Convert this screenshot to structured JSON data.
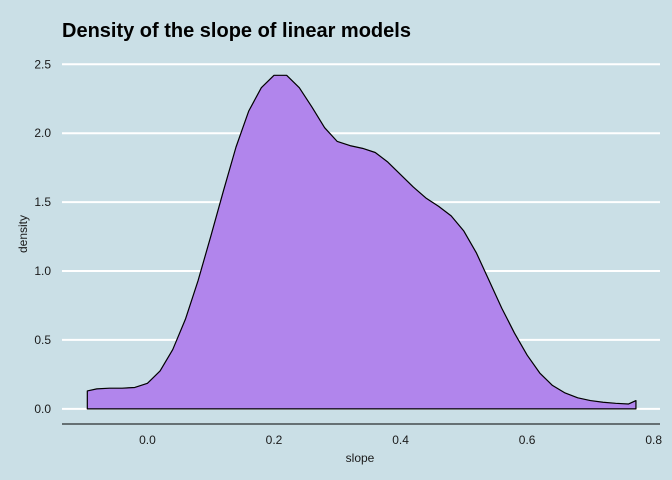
{
  "chart_data": {
    "type": "area",
    "title": "Density of the slope of linear models",
    "xlabel": "slope",
    "ylabel": "density",
    "xlim": [
      -0.135,
      0.81
    ],
    "ylim": [
      -0.11,
      2.64
    ],
    "x_ticks": [
      0.0,
      0.2,
      0.4,
      0.6,
      0.8
    ],
    "x_tick_labels": [
      "0.0",
      "0.2",
      "0.4",
      "0.6",
      "0.8"
    ],
    "y_ticks": [
      0.0,
      0.5,
      1.0,
      1.5,
      2.0,
      2.5
    ],
    "y_tick_labels": [
      "0.0",
      "0.5",
      "1.0",
      "1.5",
      "2.0",
      "2.5"
    ],
    "grid": "horizontal major lines, white",
    "legend": "none",
    "x": [
      -0.095,
      -0.08,
      -0.06,
      -0.04,
      -0.02,
      0.0,
      0.02,
      0.04,
      0.06,
      0.08,
      0.1,
      0.12,
      0.14,
      0.16,
      0.18,
      0.2,
      0.22,
      0.24,
      0.26,
      0.28,
      0.3,
      0.32,
      0.34,
      0.36,
      0.38,
      0.4,
      0.42,
      0.44,
      0.46,
      0.48,
      0.5,
      0.52,
      0.54,
      0.56,
      0.58,
      0.6,
      0.62,
      0.64,
      0.66,
      0.68,
      0.7,
      0.72,
      0.74,
      0.76,
      0.772
    ],
    "y": [
      0.13,
      0.145,
      0.15,
      0.15,
      0.155,
      0.185,
      0.275,
      0.43,
      0.65,
      0.93,
      1.25,
      1.58,
      1.9,
      2.16,
      2.33,
      2.42,
      2.42,
      2.33,
      2.19,
      2.04,
      1.94,
      1.91,
      1.89,
      1.86,
      1.79,
      1.7,
      1.61,
      1.53,
      1.47,
      1.4,
      1.29,
      1.13,
      0.93,
      0.73,
      0.55,
      0.39,
      0.26,
      0.17,
      0.115,
      0.08,
      0.06,
      0.048,
      0.04,
      0.035,
      0.06
    ],
    "fill_color": "#b185ec",
    "outline_color": "#000000",
    "background_color": "#cadfe6",
    "grid_color": "#ffffff"
  }
}
